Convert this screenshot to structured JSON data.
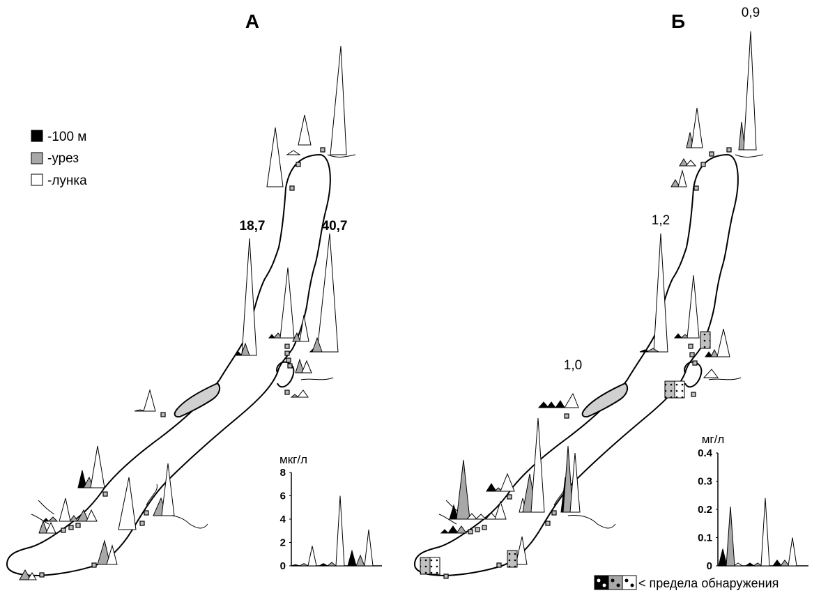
{
  "panels": {
    "a": {
      "label": "А",
      "callouts": [
        "18,7",
        "40,7"
      ],
      "unit": "мкг/л",
      "y_ticks": [
        "8",
        "6",
        "4",
        "2",
        "0"
      ]
    },
    "b": {
      "label": "Б",
      "callouts": [
        "0,9",
        "1,2",
        "1,0"
      ],
      "unit": "мг/л",
      "y_ticks": [
        "0.4",
        "0.3",
        "0.2",
        "0.1",
        "0"
      ]
    }
  },
  "legend": {
    "items": [
      {
        "label": "-100 м",
        "color": "#000000"
      },
      {
        "label": "-урез",
        "color": "#a8a8a8"
      },
      {
        "label": "-лунка",
        "color": "#ffffff"
      }
    ],
    "below_detection": "< предела обнаружения"
  },
  "chart_data": [
    {
      "type": "area",
      "title": "А",
      "ylabel": "мкг/л",
      "ylim": [
        0,
        8
      ],
      "series": [
        {
          "name": "-100 м",
          "values": [
            0.1,
            0.2,
            1.3
          ]
        },
        {
          "name": "-урез",
          "values": [
            0.2,
            0.3,
            0.9
          ]
        },
        {
          "name": "-лунка",
          "values": [
            1.7,
            6.0,
            3.1
          ]
        }
      ]
    },
    {
      "type": "area",
      "title": "Б",
      "ylabel": "мг/л",
      "ylim": [
        0,
        0.4
      ],
      "series": [
        {
          "name": "-100 м",
          "values": [
            0.06,
            0.01,
            0.02
          ]
        },
        {
          "name": "-урез",
          "values": [
            0.21,
            0.01,
            0.02
          ]
        },
        {
          "name": "-лунка",
          "values": [
            0.01,
            0.24,
            0.1
          ]
        }
      ]
    }
  ]
}
